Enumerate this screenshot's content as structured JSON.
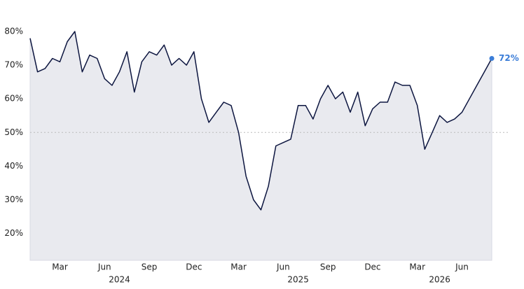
{
  "chart_data": {
    "type": "area",
    "categories": [
      null,
      null,
      null,
      null,
      "Mar",
      null,
      null,
      null,
      null,
      null,
      "Jun",
      null,
      null,
      null,
      null,
      null,
      "Sep",
      null,
      null,
      null,
      null,
      null,
      "Dec",
      null,
      null,
      null,
      null,
      null,
      "Mar",
      null,
      null,
      null,
      null,
      null,
      "Jun",
      null,
      null,
      null,
      null,
      null,
      "Sep",
      null,
      null,
      null,
      null,
      null,
      "Dec",
      null,
      null,
      null,
      null,
      null,
      "Mar",
      null,
      null,
      null,
      null,
      null,
      "Jun",
      null,
      null,
      null,
      null
    ],
    "x_group_labels": [
      "2024",
      "2025",
      "2026"
    ],
    "series": [
      {
        "color": "#0d1640",
        "fill": "#e9eaef",
        "values": [
          78,
          68,
          69,
          72,
          71,
          77,
          80,
          68,
          73,
          72,
          66,
          64,
          68,
          74,
          62,
          71,
          74,
          73,
          76,
          70,
          72,
          70,
          74,
          60,
          53,
          56,
          59,
          58,
          50,
          37,
          30,
          27,
          34,
          46,
          47,
          48,
          58,
          58,
          54,
          60,
          64,
          60,
          62,
          56,
          62,
          52,
          57,
          59,
          59,
          65,
          64,
          64,
          58,
          45,
          50,
          55,
          53,
          54,
          56,
          60,
          64,
          68,
          72
        ]
      }
    ],
    "end_label": "72%",
    "end_color": "#3b7dd8",
    "ylim": [
      12,
      85
    ],
    "yticks": [
      {
        "value": 20,
        "label": "20%"
      },
      {
        "value": 30,
        "label": "30%"
      },
      {
        "value": 40,
        "label": "40%"
      },
      {
        "value": 50,
        "label": "50%"
      },
      {
        "value": 60,
        "label": "60%"
      },
      {
        "value": 70,
        "label": "70%"
      },
      {
        "value": 80,
        "label": "80%"
      }
    ],
    "ref_line": 50
  }
}
